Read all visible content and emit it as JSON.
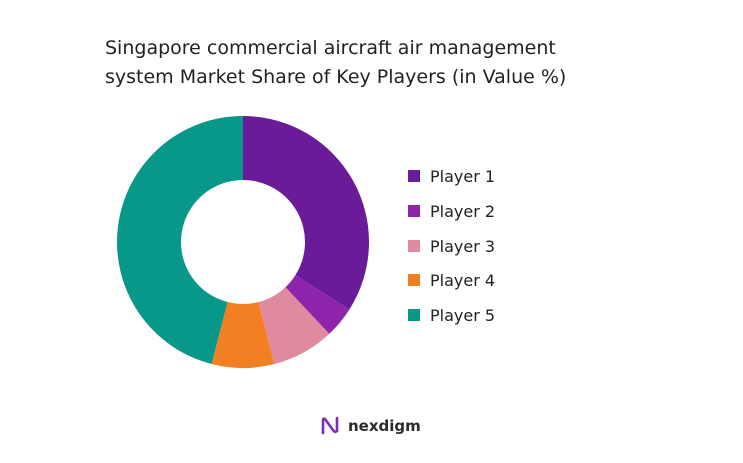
{
  "chart_data": {
    "type": "pie",
    "donut": true,
    "title_lines": [
      "Singapore commercial aircraft air management",
      "system Market Share of Key Players (in Value %)"
    ],
    "categories": [
      "Player 1",
      "Player 2",
      "Player 3",
      "Player 4",
      "Player 5"
    ],
    "values": [
      34,
      4,
      8,
      8,
      46
    ],
    "colors": [
      "#6a1b9a",
      "#8e24aa",
      "#df8a9e",
      "#f37f23",
      "#07988a"
    ],
    "legend_position": "right"
  },
  "brand": {
    "name": "nexdigm",
    "logo_icon": "nexdigm-logo-icon",
    "logo_color": "#7b2cbf"
  }
}
